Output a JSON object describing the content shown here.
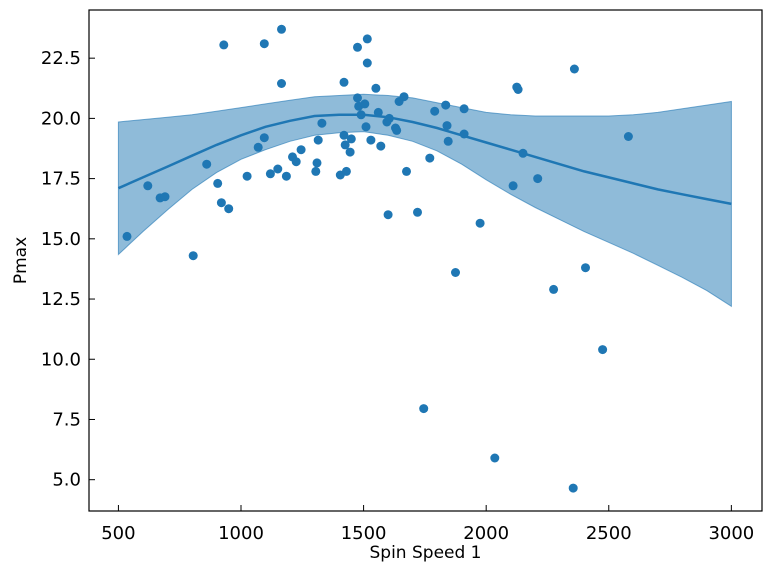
{
  "chart_data": {
    "type": "scatter",
    "title": "",
    "xlabel": "Spin Speed 1",
    "ylabel": "Pmax",
    "xlim": [
      380,
      3125
    ],
    "ylim": [
      3.7,
      24.5
    ],
    "xticks": [
      500,
      1000,
      1500,
      2000,
      2500,
      3000
    ],
    "yticks": [
      5.0,
      7.5,
      10.0,
      12.5,
      15.0,
      17.5,
      20.0,
      22.5
    ],
    "xtick_labels": [
      "500",
      "1000",
      "1500",
      "2000",
      "2500",
      "3000"
    ],
    "ytick_labels": [
      "5.0",
      "7.5",
      "10.0",
      "12.5",
      "15.0",
      "17.5",
      "20.0",
      "22.5"
    ],
    "grid": false,
    "colors": {
      "points": "#1f77b4",
      "line": "#1f77b4",
      "band": "#1f77b4"
    },
    "points": [
      {
        "x": 535,
        "y": 15.1
      },
      {
        "x": 620,
        "y": 17.2
      },
      {
        "x": 670,
        "y": 16.7
      },
      {
        "x": 690,
        "y": 16.75
      },
      {
        "x": 805,
        "y": 14.3
      },
      {
        "x": 860,
        "y": 18.1
      },
      {
        "x": 905,
        "y": 17.3
      },
      {
        "x": 920,
        "y": 16.5
      },
      {
        "x": 930,
        "y": 23.05
      },
      {
        "x": 950,
        "y": 16.25
      },
      {
        "x": 1025,
        "y": 17.6
      },
      {
        "x": 1070,
        "y": 18.8
      },
      {
        "x": 1095,
        "y": 19.2
      },
      {
        "x": 1095,
        "y": 23.1
      },
      {
        "x": 1120,
        "y": 17.7
      },
      {
        "x": 1150,
        "y": 17.9
      },
      {
        "x": 1165,
        "y": 23.7
      },
      {
        "x": 1165,
        "y": 21.45
      },
      {
        "x": 1185,
        "y": 17.6
      },
      {
        "x": 1210,
        "y": 18.4
      },
      {
        "x": 1225,
        "y": 18.2
      },
      {
        "x": 1245,
        "y": 18.7
      },
      {
        "x": 1305,
        "y": 17.8
      },
      {
        "x": 1310,
        "y": 18.15
      },
      {
        "x": 1315,
        "y": 19.1
      },
      {
        "x": 1330,
        "y": 19.8
      },
      {
        "x": 1405,
        "y": 17.65
      },
      {
        "x": 1420,
        "y": 21.5
      },
      {
        "x": 1420,
        "y": 19.3
      },
      {
        "x": 1425,
        "y": 18.9
      },
      {
        "x": 1430,
        "y": 17.8
      },
      {
        "x": 1445,
        "y": 18.6
      },
      {
        "x": 1450,
        "y": 19.15
      },
      {
        "x": 1475,
        "y": 22.95
      },
      {
        "x": 1475,
        "y": 20.85
      },
      {
        "x": 1480,
        "y": 20.5
      },
      {
        "x": 1490,
        "y": 20.15
      },
      {
        "x": 1505,
        "y": 20.6
      },
      {
        "x": 1510,
        "y": 19.65
      },
      {
        "x": 1515,
        "y": 23.3
      },
      {
        "x": 1515,
        "y": 22.3
      },
      {
        "x": 1530,
        "y": 19.1
      },
      {
        "x": 1550,
        "y": 21.25
      },
      {
        "x": 1560,
        "y": 20.25
      },
      {
        "x": 1570,
        "y": 18.85
      },
      {
        "x": 1595,
        "y": 19.85
      },
      {
        "x": 1600,
        "y": 16.0
      },
      {
        "x": 1605,
        "y": 20.0
      },
      {
        "x": 1630,
        "y": 19.6
      },
      {
        "x": 1635,
        "y": 19.5
      },
      {
        "x": 1645,
        "y": 20.7
      },
      {
        "x": 1665,
        "y": 20.9
      },
      {
        "x": 1675,
        "y": 17.8
      },
      {
        "x": 1720,
        "y": 16.1
      },
      {
        "x": 1745,
        "y": 7.95
      },
      {
        "x": 1770,
        "y": 18.35
      },
      {
        "x": 1790,
        "y": 20.3
      },
      {
        "x": 1835,
        "y": 20.55
      },
      {
        "x": 1840,
        "y": 19.7
      },
      {
        "x": 1845,
        "y": 19.05
      },
      {
        "x": 1875,
        "y": 13.6
      },
      {
        "x": 1910,
        "y": 19.35
      },
      {
        "x": 1910,
        "y": 20.4
      },
      {
        "x": 1975,
        "y": 15.65
      },
      {
        "x": 2035,
        "y": 5.9
      },
      {
        "x": 2110,
        "y": 17.2
      },
      {
        "x": 2125,
        "y": 21.3
      },
      {
        "x": 2130,
        "y": 21.2
      },
      {
        "x": 2150,
        "y": 18.55
      },
      {
        "x": 2210,
        "y": 17.5
      },
      {
        "x": 2275,
        "y": 12.9
      },
      {
        "x": 2355,
        "y": 4.65
      },
      {
        "x": 2360,
        "y": 22.05
      },
      {
        "x": 2405,
        "y": 13.8
      },
      {
        "x": 2475,
        "y": 10.4
      },
      {
        "x": 2580,
        "y": 19.25
      }
    ],
    "fit_line": [
      {
        "x": 500,
        "y": 17.1
      },
      {
        "x": 600,
        "y": 17.55
      },
      {
        "x": 700,
        "y": 18.0
      },
      {
        "x": 800,
        "y": 18.45
      },
      {
        "x": 900,
        "y": 18.9
      },
      {
        "x": 1000,
        "y": 19.3
      },
      {
        "x": 1100,
        "y": 19.65
      },
      {
        "x": 1200,
        "y": 19.9
      },
      {
        "x": 1300,
        "y": 20.1
      },
      {
        "x": 1400,
        "y": 20.15
      },
      {
        "x": 1500,
        "y": 20.15
      },
      {
        "x": 1600,
        "y": 20.05
      },
      {
        "x": 1700,
        "y": 19.85
      },
      {
        "x": 1800,
        "y": 19.6
      },
      {
        "x": 1900,
        "y": 19.3
      },
      {
        "x": 2000,
        "y": 19.0
      },
      {
        "x": 2100,
        "y": 18.7
      },
      {
        "x": 2200,
        "y": 18.4
      },
      {
        "x": 2300,
        "y": 18.1
      },
      {
        "x": 2400,
        "y": 17.8
      },
      {
        "x": 2500,
        "y": 17.55
      },
      {
        "x": 2600,
        "y": 17.3
      },
      {
        "x": 2700,
        "y": 17.05
      },
      {
        "x": 2800,
        "y": 16.85
      },
      {
        "x": 2900,
        "y": 16.65
      },
      {
        "x": 3000,
        "y": 16.45
      }
    ],
    "band": {
      "x": [
        500,
        600,
        700,
        800,
        900,
        1000,
        1100,
        1200,
        1300,
        1400,
        1500,
        1600,
        1700,
        1800,
        1900,
        2000,
        2100,
        2200,
        2300,
        2400,
        2500,
        2600,
        2700,
        2800,
        2900,
        3000
      ],
      "upper": [
        19.85,
        19.95,
        20.05,
        20.15,
        20.3,
        20.45,
        20.6,
        20.75,
        20.9,
        20.95,
        21.0,
        20.95,
        20.85,
        20.65,
        20.45,
        20.25,
        20.15,
        20.1,
        20.1,
        20.1,
        20.1,
        20.15,
        20.25,
        20.4,
        20.55,
        20.7
      ],
      "lower": [
        14.35,
        15.3,
        16.2,
        17.05,
        17.75,
        18.3,
        18.7,
        19.05,
        19.3,
        19.4,
        19.45,
        19.3,
        19.05,
        18.65,
        18.1,
        17.45,
        16.85,
        16.3,
        15.8,
        15.3,
        14.85,
        14.4,
        13.9,
        13.4,
        12.85,
        12.2
      ]
    }
  }
}
